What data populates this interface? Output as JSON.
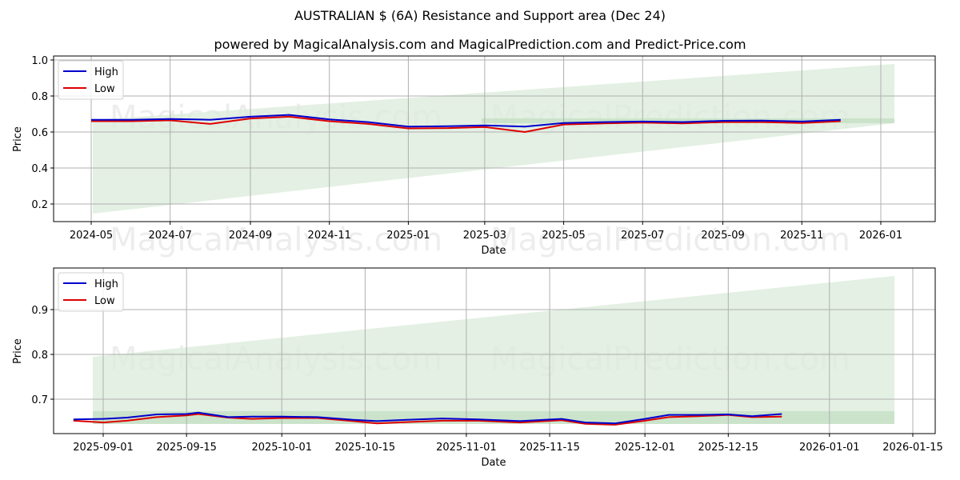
{
  "title": "AUSTRALIAN $ (6A) Resistance and Support area (Dec 24)",
  "subtitle": "powered by MagicalAnalysis.com and MagicalPrediction.com and Predict-Price.com",
  "watermarks": [
    "MagicalAnalysis.com",
    "MagicalPrediction.com"
  ],
  "colors": {
    "high": "#0000cc",
    "low": "#dd0000",
    "band_light": "#d9ebd9",
    "band_dark": "#c4e0c4",
    "grid": "#b0b0b0"
  },
  "chart_data": [
    {
      "type": "line",
      "title": "",
      "xlabel": "Date",
      "ylabel": "Price",
      "ylim": [
        0.1,
        1.0
      ],
      "yticks": [
        "0.2",
        "0.4",
        "0.6",
        "0.8",
        "1.0"
      ],
      "xticks": [
        "2024-05",
        "2024-07",
        "2024-09",
        "2024-11",
        "2025-01",
        "2025-03",
        "2025-05",
        "2025-07",
        "2025-09",
        "2025-11",
        "2026-01"
      ],
      "grid": true,
      "legend": {
        "position": "upper left",
        "entries": [
          "High",
          "Low"
        ]
      },
      "support_band": {
        "x_start": "2024-05-03",
        "x_end": "2026-01-12",
        "lower_start": 0.15,
        "lower_end": 0.65,
        "upper_start": 0.64,
        "upper_end": 0.97,
        "note": "light green widening resistance/support area"
      },
      "support_strip": {
        "x_start": "2025-03-15",
        "x_end": "2026-01-12",
        "low": 0.645,
        "high": 0.67
      },
      "x": [
        "2024-05",
        "2024-06",
        "2024-07",
        "2024-08",
        "2024-09",
        "2024-10",
        "2024-11",
        "2024-12",
        "2025-01",
        "2025-02",
        "2025-03",
        "2025-04",
        "2025-05",
        "2025-06",
        "2025-07",
        "2025-08",
        "2025-09",
        "2025-10",
        "2025-11",
        "2025-12"
      ],
      "series": [
        {
          "name": "High",
          "values": [
            0.668,
            0.668,
            0.672,
            0.668,
            0.685,
            0.695,
            0.67,
            0.655,
            0.63,
            0.632,
            0.637,
            0.63,
            0.65,
            0.655,
            0.658,
            0.655,
            0.662,
            0.663,
            0.658,
            0.668
          ]
        },
        {
          "name": "Low",
          "values": [
            0.66,
            0.66,
            0.665,
            0.645,
            0.675,
            0.685,
            0.66,
            0.645,
            0.62,
            0.622,
            0.628,
            0.6,
            0.642,
            0.648,
            0.652,
            0.648,
            0.655,
            0.655,
            0.65,
            0.66
          ]
        }
      ]
    },
    {
      "type": "line",
      "title": "",
      "xlabel": "Date",
      "ylabel": "Price",
      "ylim": [
        0.625,
        0.99
      ],
      "yticks": [
        "0.7",
        "0.8",
        "0.9"
      ],
      "xticks": [
        "2025-09-01",
        "2025-09-15",
        "2025-10-01",
        "2025-10-15",
        "2025-11-01",
        "2025-11-15",
        "2025-12-01",
        "2025-12-15",
        "2026-01-01",
        "2026-01-15"
      ],
      "grid": true,
      "legend": {
        "position": "upper left",
        "entries": [
          "High",
          "Low"
        ]
      },
      "support_band": {
        "x_start": "2025-08-27",
        "x_end": "2026-01-12",
        "lower": 0.645,
        "upper_start": 0.795,
        "upper_end": 0.975
      },
      "support_strip": {
        "x_start": "2025-08-27",
        "x_end": "2026-01-12",
        "low": 0.645,
        "high": 0.672
      },
      "x": [
        "2025-08-27",
        "2025-09-01",
        "2025-09-05",
        "2025-09-10",
        "2025-09-15",
        "2025-09-17",
        "2025-09-22",
        "2025-09-26",
        "2025-10-01",
        "2025-10-07",
        "2025-10-13",
        "2025-10-17",
        "2025-10-22",
        "2025-10-28",
        "2025-11-03",
        "2025-11-10",
        "2025-11-17",
        "2025-11-21",
        "2025-11-26",
        "2025-12-01",
        "2025-12-05",
        "2025-12-10",
        "2025-12-15",
        "2025-12-19",
        "2025-12-24"
      ],
      "series": [
        {
          "name": "High",
          "values": [
            0.655,
            0.656,
            0.659,
            0.666,
            0.667,
            0.67,
            0.66,
            0.661,
            0.661,
            0.66,
            0.654,
            0.651,
            0.654,
            0.657,
            0.655,
            0.651,
            0.656,
            0.648,
            0.646,
            0.656,
            0.665,
            0.665,
            0.666,
            0.662,
            0.667
          ]
        },
        {
          "name": "Low",
          "values": [
            0.652,
            0.648,
            0.652,
            0.66,
            0.664,
            0.667,
            0.659,
            0.656,
            0.658,
            0.658,
            0.651,
            0.646,
            0.649,
            0.652,
            0.652,
            0.648,
            0.653,
            0.645,
            0.643,
            0.652,
            0.66,
            0.662,
            0.665,
            0.66,
            0.661
          ]
        }
      ]
    }
  ]
}
